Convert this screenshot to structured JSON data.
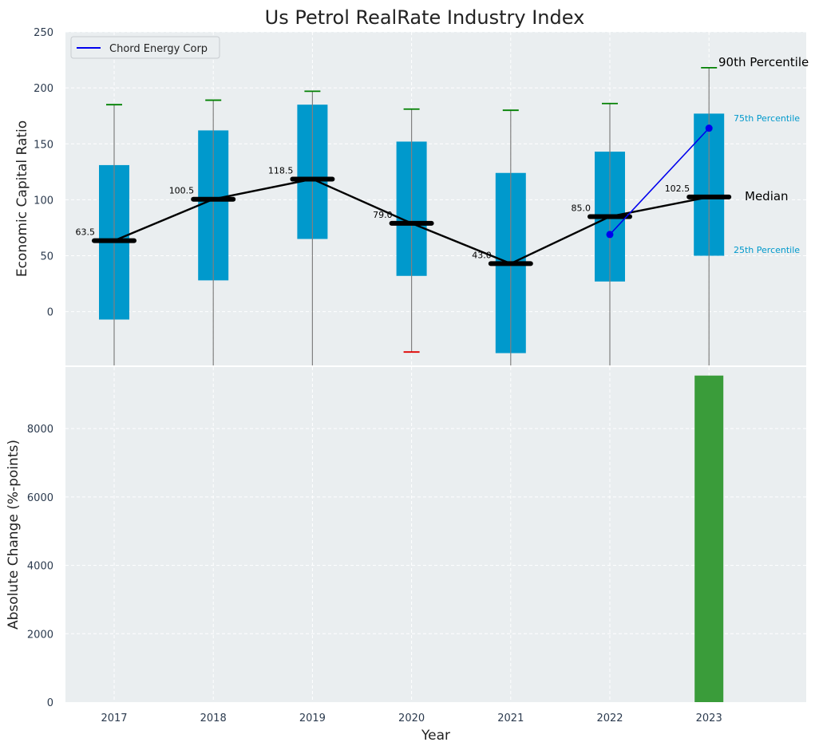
{
  "chart_data": [
    {
      "type": "box",
      "title": "Us Petrol RealRate Industry Index",
      "ylabel": "Economic Capital Ratio",
      "xlabel": "",
      "ylim": [
        -48,
        250
      ],
      "yticks": [
        0,
        50,
        100,
        150,
        200,
        250
      ],
      "grid": true,
      "legend_position": "top-left",
      "categories": [
        "2017",
        "2018",
        "2019",
        "2020",
        "2021",
        "2022",
        "2023"
      ],
      "boxes": [
        {
          "year": "2017",
          "p10": -48,
          "p25": -7,
          "median": 63.5,
          "p75": 131,
          "p90": 185,
          "p90_color": "#008000"
        },
        {
          "year": "2018",
          "p10": -48,
          "p25": 28,
          "median": 100.5,
          "p75": 162,
          "p90": 189,
          "p90_color": "#008000"
        },
        {
          "year": "2019",
          "p10": -48,
          "p25": 65,
          "median": 118.5,
          "p75": 185,
          "p90": 197,
          "p90_color": "#008000"
        },
        {
          "year": "2020",
          "p10": -36,
          "p25": 32,
          "median": 79.0,
          "p75": 152,
          "p90": 181,
          "p90_color": "#008000",
          "p10_color": "#e00000"
        },
        {
          "year": "2021",
          "p10": -48,
          "p25": -37,
          "median": 43.0,
          "p75": 124,
          "p90": 180,
          "p90_color": "#008000"
        },
        {
          "year": "2022",
          "p10": -48,
          "p25": 27,
          "median": 85.0,
          "p75": 143,
          "p90": 186,
          "p90_color": "#008000"
        },
        {
          "year": "2023",
          "p10": -48,
          "p25": 50,
          "median": 102.5,
          "p75": 177,
          "p90": 218,
          "p90_color": "#008000"
        }
      ],
      "median_labels": [
        "63.5",
        "100.5",
        "118.5",
        "79.0",
        "43.0",
        "85.0",
        "102.5"
      ],
      "company_series": {
        "name": "Chord Energy Corp",
        "x": [
          "2022",
          "2023"
        ],
        "values": [
          69,
          164
        ],
        "color": "#0000ee"
      },
      "annotations": {
        "p90": "90th Percentile",
        "p75": "75th Percentile",
        "median": "Median",
        "p25": "25th Percentile"
      },
      "colors": {
        "box": "#0099cc",
        "median_line": "#000000",
        "whisker": "#808080",
        "background": "#eaeef0",
        "pct_small": "#0099cc"
      }
    },
    {
      "type": "bar",
      "title": "",
      "xlabel": "Year",
      "ylabel": "Absolute Change (%-points)",
      "ylim": [
        0,
        9800
      ],
      "yticks": [
        0,
        2000,
        4000,
        6000,
        8000
      ],
      "grid": true,
      "categories": [
        "2017",
        "2018",
        "2019",
        "2020",
        "2021",
        "2022",
        "2023"
      ],
      "values": [
        0,
        0,
        0,
        0,
        0,
        0,
        9550
      ],
      "color": "#3a9c3a"
    }
  ]
}
